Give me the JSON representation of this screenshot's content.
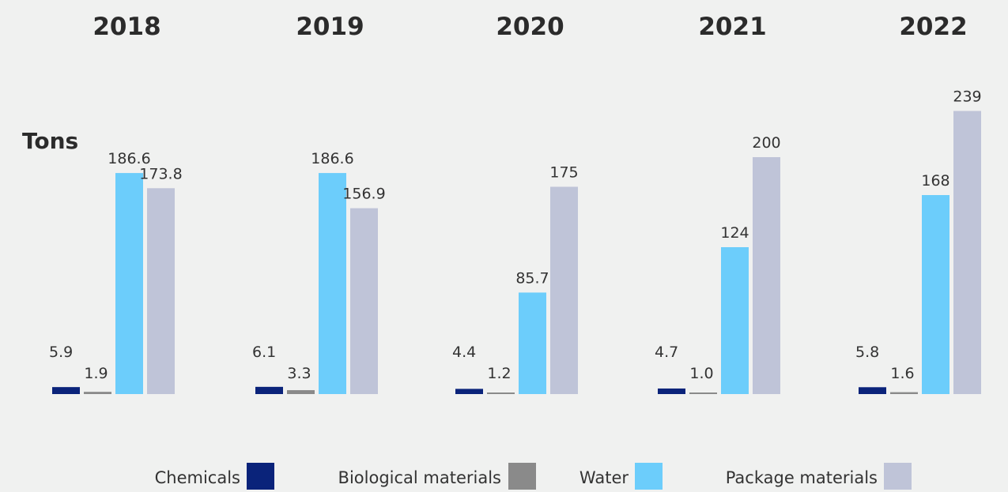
{
  "chart_data": {
    "type": "bar",
    "ylabel": "Tons",
    "categories": [
      "2018",
      "2019",
      "2020",
      "2021",
      "2022"
    ],
    "series": [
      {
        "name": "Chemicals",
        "color": "#0a237a",
        "values": [
          5.9,
          6.1,
          4.4,
          4.7,
          5.8
        ],
        "labels": [
          "5.9",
          "6.1",
          "4.4",
          "4.7",
          "5.8"
        ]
      },
      {
        "name": "Biological materials",
        "color": "#8a8a8a",
        "values": [
          1.9,
          3.3,
          1.2,
          1.0,
          1.6
        ],
        "labels": [
          "1.9",
          "3.3",
          "1.2",
          "1.0",
          "1.6"
        ]
      },
      {
        "name": "Water",
        "color": "#6ccdfb",
        "values": [
          186.6,
          186.6,
          85.7,
          124,
          168
        ],
        "labels": [
          "186.6",
          "186.6",
          "85.7",
          "124",
          "168"
        ]
      },
      {
        "name": "Package materials",
        "color": "#bfc4d8",
        "values": [
          173.8,
          156.9,
          175,
          200,
          239
        ],
        "labels": [
          "173.8",
          "156.9",
          "175",
          "200",
          "239"
        ]
      }
    ],
    "legend_position": "bottom",
    "grid": false
  }
}
